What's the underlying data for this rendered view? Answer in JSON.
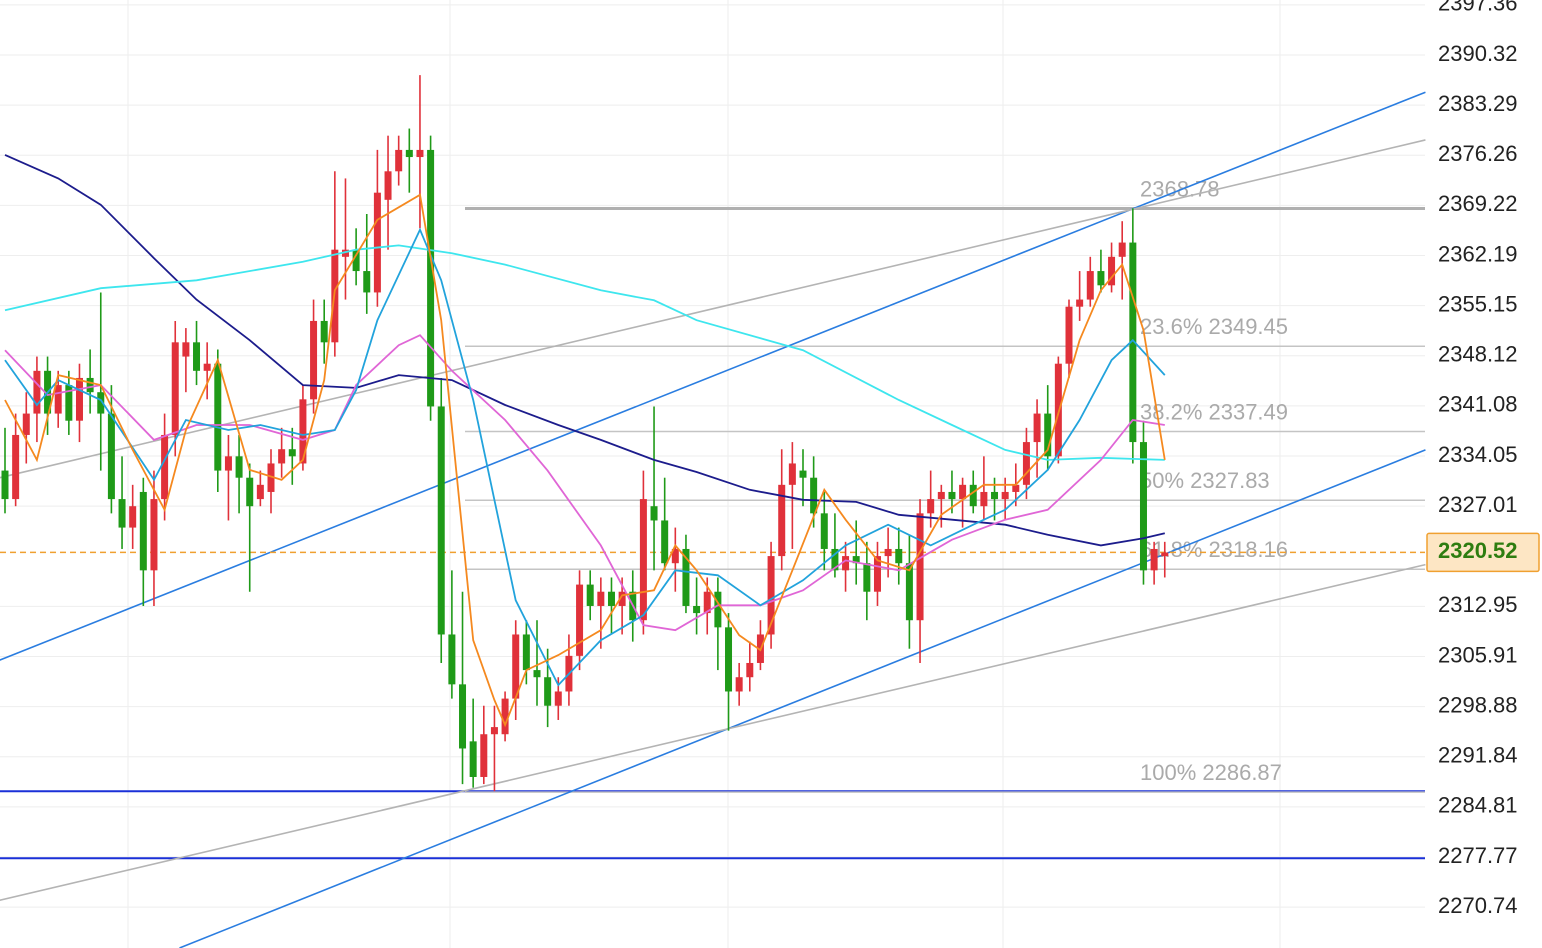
{
  "chart_data": {
    "type": "candlestick",
    "ylim": [
      2265.0,
      2398.04
    ],
    "yticks": [
      2397.36,
      2390.32,
      2383.29,
      2376.26,
      2369.22,
      2362.19,
      2355.15,
      2348.12,
      2341.08,
      2334.05,
      2327.01,
      2312.95,
      2305.91,
      2298.88,
      2291.84,
      2284.81,
      2277.77,
      2270.74
    ],
    "grid": true,
    "up_color": "#e0313a",
    "down_color": "#1f9a18",
    "open": [
      2332,
      2328,
      2337,
      2340,
      2346,
      2340,
      2344,
      2339,
      2345,
      2343,
      2340,
      2328,
      2324,
      2329,
      2318,
      2328,
      2337,
      2348,
      2350,
      2346,
      2347,
      2332,
      2334,
      2331,
      2328,
      2329,
      2333,
      2335,
      2333,
      2342,
      2353,
      2350,
      2362,
      2363,
      2360,
      2357,
      2370,
      2374,
      2377,
      2376,
      2377,
      2341,
      2309,
      2302,
      2294,
      2289,
      2295,
      2295,
      2300,
      2309,
      2304,
      2303,
      2299,
      2301,
      2306,
      2316,
      2313,
      2315,
      2313,
      2315,
      2311,
      2327,
      2325,
      2319,
      2321,
      2313,
      2312,
      2315,
      2310,
      2301,
      2303,
      2305,
      2309,
      2320,
      2330,
      2332,
      2331,
      2326,
      2321,
      2318,
      2320,
      2319,
      2315,
      2320,
      2321,
      2319,
      2311,
      2326,
      2328,
      2329,
      2328,
      2330,
      2327,
      2329,
      2328,
      2329,
      2330,
      2336,
      2340,
      2334,
      2347,
      2355,
      2356,
      2360,
      2358,
      2362,
      2364,
      2336,
      2318,
      2320
    ],
    "high": [
      2338,
      2340,
      2343,
      2348,
      2348,
      2346,
      2346,
      2347,
      2349,
      2357,
      2344,
      2334,
      2330,
      2331,
      2332,
      2340,
      2353,
      2352,
      2353,
      2350,
      2349,
      2337,
      2337,
      2333,
      2332,
      2335,
      2338,
      2338,
      2344,
      2356,
      2356,
      2374,
      2373,
      2366,
      2368,
      2377,
      2379,
      2379,
      2380,
      2387.5,
      2379,
      2345,
      2318,
      2315,
      2300,
      2299,
      2299,
      2301,
      2311,
      2311,
      2311,
      2307,
      2303,
      2309,
      2318,
      2318,
      2317,
      2317,
      2317,
      2318,
      2332,
      2341,
      2331,
      2324,
      2323,
      2317,
      2317,
      2317,
      2312,
      2305,
      2308,
      2311,
      2322,
      2335,
      2336,
      2335,
      2334,
      2329,
      2326,
      2322,
      2325,
      2322,
      2322,
      2324,
      2324,
      2323,
      2328,
      2332,
      2330,
      2332,
      2331,
      2332,
      2334,
      2331,
      2331,
      2333,
      2338,
      2342,
      2344,
      2348,
      2356,
      2360,
      2362,
      2363,
      2364,
      2367,
      2368.8,
      2339,
      2322,
      2322
    ],
    "low": [
      2326,
      2327,
      2333,
      2336,
      2337,
      2338,
      2337,
      2336,
      2340,
      2332,
      2326,
      2321,
      2321,
      2313,
      2313,
      2325,
      2334,
      2343,
      2344,
      2342,
      2329,
      2325,
      2326,
      2315,
      2327,
      2326,
      2331,
      2330,
      2332,
      2340,
      2347,
      2348,
      2356,
      2358,
      2354,
      2355,
      2363,
      2372,
      2371,
      2366,
      2339,
      2305,
      2300,
      2288,
      2287.5,
      2288,
      2287,
      2294,
      2297,
      2302,
      2299,
      2296,
      2297,
      2299,
      2304,
      2311,
      2307,
      2309,
      2309,
      2308,
      2309,
      2318,
      2318,
      2315,
      2312,
      2309,
      2309,
      2304,
      2295.5,
      2299,
      2301,
      2304,
      2307,
      2318,
      2321,
      2327,
      2324,
      2318,
      2317,
      2315,
      2316,
      2311,
      2313,
      2317,
      2316,
      2307,
      2305,
      2324,
      2324,
      2326,
      2324,
      2326,
      2325,
      2325,
      2325,
      2327,
      2328,
      2331,
      2332,
      2333,
      2345,
      2353,
      2355,
      2357,
      2357,
      2356,
      2333,
      2316,
      2316,
      2317
    ],
    "close": [
      2328,
      2337,
      2340,
      2346,
      2340,
      2344,
      2339,
      2345,
      2343,
      2340,
      2328,
      2324,
      2327,
      2318,
      2328,
      2337,
      2350,
      2350,
      2346,
      2347,
      2332,
      2334,
      2331,
      2327,
      2330,
      2333,
      2335,
      2334,
      2342,
      2353,
      2350,
      2363,
      2363,
      2360,
      2357,
      2371,
      2374,
      2377,
      2376,
      2377,
      2341,
      2309,
      2302,
      2293,
      2289,
      2295,
      2296,
      2300,
      2309,
      2304,
      2303,
      2299,
      2301,
      2306,
      2316,
      2313,
      2315,
      2313,
      2315,
      2311,
      2328,
      2325,
      2319,
      2321,
      2313,
      2312,
      2315,
      2310,
      2301,
      2303,
      2305,
      2309,
      2320,
      2330,
      2333,
      2331,
      2326,
      2321,
      2318,
      2320,
      2319,
      2315,
      2320,
      2321,
      2319,
      2311,
      2326,
      2328,
      2329,
      2328,
      2330,
      2327,
      2329,
      2328,
      2329,
      2330,
      2336,
      2340,
      2334,
      2347,
      2355,
      2356,
      2360,
      2358,
      2362,
      2364,
      2336,
      2318,
      2321,
      2320.5
    ],
    "averages": [
      {
        "color": "#1c1c8c",
        "x": [
          0,
          5,
          9,
          14,
          18,
          23,
          28,
          33,
          37,
          42,
          47,
          52,
          56,
          61,
          65,
          70,
          75,
          80,
          84,
          89,
          94,
          98,
          103,
          107,
          109
        ],
        "values": [
          2376.3,
          2373,
          2369.3,
          2361.8,
          2356,
          2350.3,
          2344,
          2343.6,
          2345.4,
          2344.7,
          2341.2,
          2338.4,
          2336.3,
          2333.5,
          2331.8,
          2329.3,
          2327.9,
          2327.6,
          2325.8,
          2325.1,
          2324.4,
          2323,
          2321.5,
          2322.5,
          2323.2
        ]
      },
      {
        "color": "#3ee6ee",
        "x": [
          0,
          9,
          18,
          28,
          33,
          37,
          42,
          47,
          56,
          61,
          65,
          75,
          84,
          89,
          94,
          98,
          103,
          109
        ],
        "values": [
          2354.5,
          2357.6,
          2358.7,
          2361.3,
          2363,
          2363.6,
          2362.5,
          2360.9,
          2357.3,
          2355.9,
          2353.1,
          2348.9,
          2341.9,
          2338.4,
          2334.9,
          2333.5,
          2333.8,
          2333.5
        ]
      },
      {
        "color": "#e066d6",
        "x": [
          0,
          4,
          9,
          14,
          18,
          23,
          28,
          31,
          33,
          37,
          39,
          42,
          47,
          51,
          56,
          60,
          63,
          67,
          71,
          75,
          79,
          84,
          89,
          94,
          98,
          103,
          106,
          109
        ],
        "values": [
          2348.9,
          2342.6,
          2344,
          2336.3,
          2338.4,
          2338.4,
          2336.3,
          2337.7,
          2344,
          2349.6,
          2351,
          2346,
          2339.1,
          2332,
          2321.5,
          2310.3,
          2309.6,
          2313.1,
          2313.1,
          2315.2,
          2319.4,
          2318,
          2322.3,
          2325.1,
          2326.5,
          2333.5,
          2339.1,
          2338.4
        ]
      },
      {
        "color": "#22a3dc",
        "x": [
          0,
          3,
          5,
          9,
          14,
          17,
          21,
          24,
          28,
          31,
          33,
          35,
          39,
          41,
          44,
          48,
          52,
          56,
          60,
          63,
          67,
          71,
          75,
          79,
          83,
          87,
          91,
          94,
          98,
          101,
          104,
          106,
          109
        ],
        "values": [
          2347.5,
          2341.2,
          2344.7,
          2341.9,
          2330.7,
          2339.1,
          2337.7,
          2338.4,
          2337,
          2337.7,
          2343.3,
          2353.1,
          2365.8,
          2358.7,
          2341.9,
          2313.8,
          2301.9,
          2308.2,
          2311.7,
          2318,
          2317.3,
          2313.1,
          2316.6,
          2321.5,
          2324.4,
          2321.5,
          2324.4,
          2326.5,
          2332.1,
          2339.1,
          2347.5,
          2350.3,
          2345.4
        ]
      },
      {
        "color": "#f5891f",
        "x": [
          0,
          3,
          5,
          9,
          12,
          15,
          17,
          20,
          23,
          26,
          28,
          30,
          31,
          35,
          39,
          41,
          44,
          46,
          47,
          49,
          52,
          56,
          58,
          61,
          63,
          65,
          69,
          71,
          74,
          77,
          79,
          82,
          85,
          88,
          92,
          95,
          98,
          101,
          103,
          105,
          107,
          109
        ],
        "values": [
          2341.9,
          2333.5,
          2345.4,
          2344,
          2334.9,
          2326.5,
          2337.7,
          2347.5,
          2332.1,
          2330.7,
          2333.5,
          2344.7,
          2357.3,
          2367.2,
          2370.7,
          2353.1,
          2308.2,
          2299.8,
          2296.3,
          2304,
          2306.1,
          2309.6,
          2314.5,
          2315.2,
          2321.5,
          2318,
          2308.9,
          2306.8,
          2318,
          2329.3,
          2325.1,
          2319.4,
          2318,
          2325.8,
          2330,
          2330,
          2334.9,
          2350.3,
          2357.3,
          2360.9,
          2351.7,
          2333.5
        ]
      }
    ],
    "trendlines": [
      {
        "color": "#2a7de0",
        "x": [
          -0.5,
          133.5
        ],
        "values": [
          2305.4,
          2385.1
        ]
      },
      {
        "color": "#b4b4b4",
        "x": [
          -0.5,
          133.5
        ],
        "values": [
          2331.0,
          2378.4
        ]
      },
      {
        "color": "#2a7de0",
        "x": [
          16.4,
          133.5
        ],
        "values": [
          2265.0,
          2334.9
        ]
      },
      {
        "color": "#b4b4b4",
        "x": [
          -0.5,
          133.5
        ],
        "values": [
          2271.7,
          2318.8
        ]
      }
    ],
    "hlines": [
      {
        "color": "#1a30d8",
        "value": 2287.0
      },
      {
        "color": "#1a30d8",
        "value": 2277.6
      }
    ],
    "fib_levels": [
      {
        "value": 2368.78,
        "label": "2368.78"
      },
      {
        "value": 2349.45,
        "label": "23.6% 2349.45"
      },
      {
        "value": 2337.49,
        "label": "38.2% 2337.49"
      },
      {
        "value": 2327.83,
        "label": "50% 2327.83"
      },
      {
        "value": 2318.16,
        "label": "61.8% 2318.16"
      },
      {
        "value": 2286.87,
        "label": "100% 2286.87"
      }
    ],
    "price_line": {
      "value": 2320.52,
      "color": "#f0a030"
    }
  }
}
